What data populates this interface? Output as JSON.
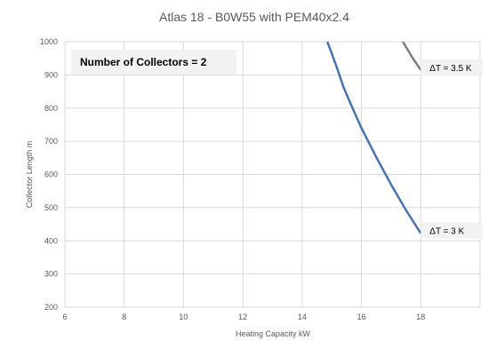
{
  "chart_data": {
    "type": "line",
    "title": "Atlas 18 - B0W55 with PEM40x2.4",
    "xlabel": "Heating Capacity  kW",
    "ylabel": "Collector Length  m",
    "xlim": [
      6,
      20
    ],
    "ylim": [
      200,
      1000
    ],
    "x_ticks": [
      "6",
      "8",
      "10",
      "12",
      "14",
      "16",
      "18"
    ],
    "y_ticks": [
      "200",
      "300",
      "400",
      "500",
      "600",
      "700",
      "800",
      "900",
      "1000"
    ],
    "grid": true,
    "annotation": "Number of Collectors = 2",
    "series": [
      {
        "name": "ΔT = 3 K",
        "color": "#4472C4",
        "x": [
          14.85,
          15.0,
          15.2,
          15.4,
          15.7,
          16.0,
          16.5,
          17.0,
          17.5,
          18.0
        ],
        "y": [
          1000,
          965,
          915,
          862,
          800,
          740,
          652,
          570,
          493,
          423
        ]
      },
      {
        "name": "ΔT = 3.5 K",
        "color": "#7F7F7F",
        "x": [
          17.4,
          17.7,
          18.0
        ],
        "y": [
          1000,
          955,
          915
        ]
      }
    ]
  }
}
